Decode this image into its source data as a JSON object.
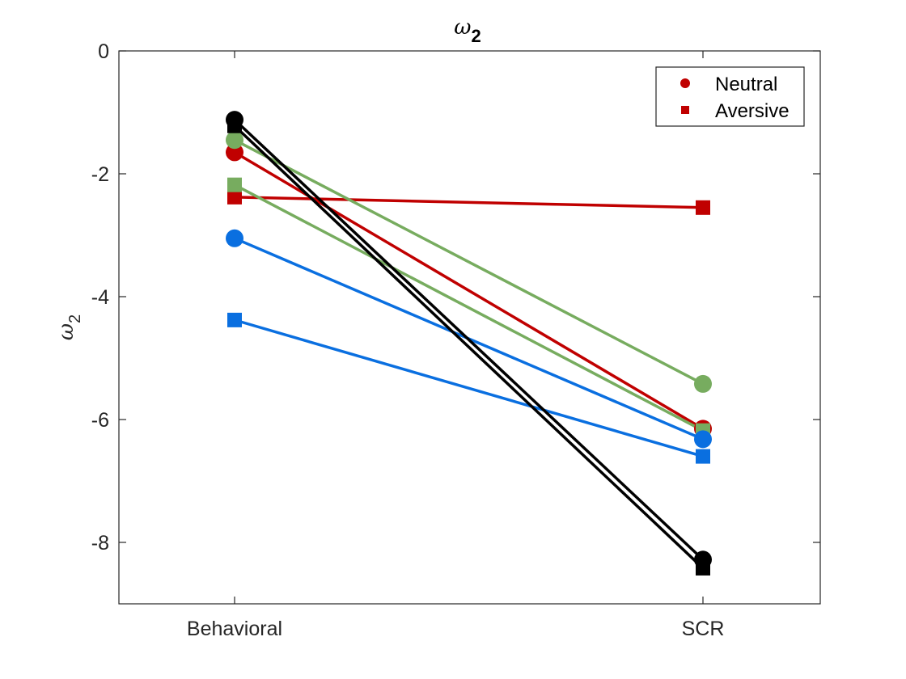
{
  "chart_data": {
    "type": "line",
    "title": {
      "symbol": "ω",
      "subscript": "2"
    },
    "ylabel": {
      "symbol": "ω",
      "subscript": "2"
    },
    "xlabel": "",
    "categories": [
      "Behavioral",
      "SCR"
    ],
    "ylim": [
      -9,
      0
    ],
    "yticks": [
      0,
      -2,
      -4,
      -6,
      -8
    ],
    "ytick_labels": [
      "0",
      "-2",
      "-4",
      "-6",
      "-8"
    ],
    "grid": false,
    "legend": {
      "placement": "top-right",
      "entries": [
        {
          "label": "Neutral",
          "marker": "circle",
          "color": "#C00000"
        },
        {
          "label": "Aversive",
          "marker": "square",
          "color": "#C00000"
        }
      ]
    },
    "series": [
      {
        "name": "Red Neutral",
        "condition": "Neutral",
        "marker": "circle",
        "color": "#C00000",
        "values": [
          -1.65,
          -6.15
        ]
      },
      {
        "name": "Red Aversive",
        "condition": "Aversive",
        "marker": "square",
        "color": "#C00000",
        "values": [
          -2.38,
          -2.55
        ]
      },
      {
        "name": "Green Neutral",
        "condition": "Neutral",
        "marker": "circle",
        "color": "#77AC5F",
        "values": [
          -1.45,
          -5.42
        ]
      },
      {
        "name": "Green Aversive",
        "condition": "Aversive",
        "marker": "square",
        "color": "#77AC5F",
        "values": [
          -2.18,
          -6.18
        ]
      },
      {
        "name": "Blue Neutral",
        "condition": "Neutral",
        "marker": "circle",
        "color": "#0A6FE0",
        "values": [
          -3.05,
          -6.32
        ]
      },
      {
        "name": "Blue Aversive",
        "condition": "Aversive",
        "marker": "square",
        "color": "#0A6FE0",
        "values": [
          -4.38,
          -6.6
        ]
      },
      {
        "name": "Black Neutral",
        "condition": "Neutral",
        "marker": "circle",
        "color": "#000000",
        "values": [
          -1.12,
          -8.28
        ]
      },
      {
        "name": "Black Aversive",
        "condition": "Aversive",
        "marker": "square",
        "color": "#000000",
        "values": [
          -1.22,
          -8.42
        ]
      }
    ]
  }
}
